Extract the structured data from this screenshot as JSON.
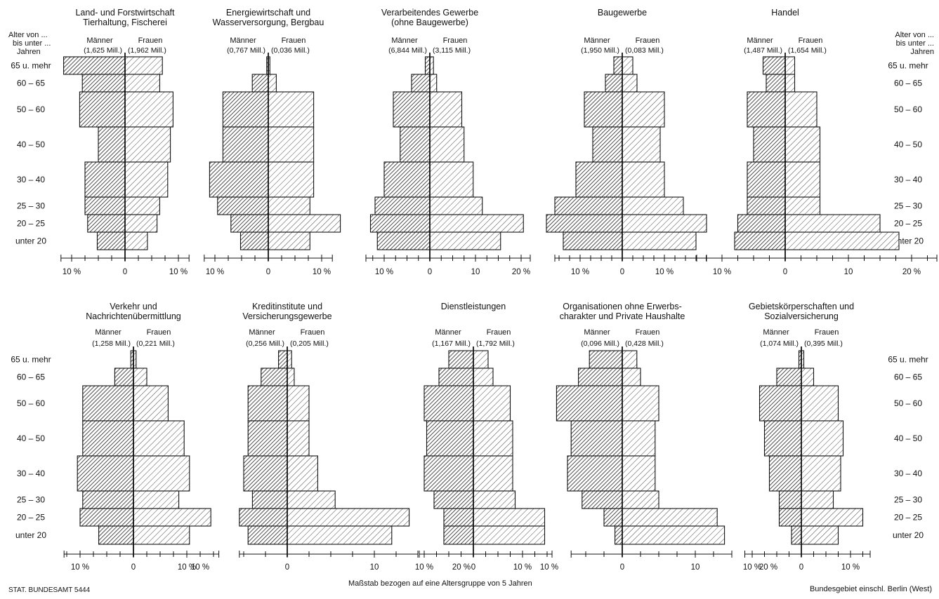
{
  "colors": {
    "ink": "#111111",
    "paper": "#ffffff",
    "male_hatch": "#222222",
    "female_hatch": "#333333"
  },
  "age_axis": {
    "title_lines": [
      "Alter von ...",
      "bis unter ...",
      "Jahren"
    ],
    "top_labels": [
      "65 u. mehr",
      "60 – 65",
      "50 – 60",
      "40 – 50",
      "30 – 40",
      "25 – 30",
      "20 – 25",
      "unter 20"
    ],
    "bottom_labels": [
      "65 u. mehr",
      "60 – 65",
      "50 – 60",
      "40 – 50",
      "30 – 40",
      "25 – 30",
      "20 – 25",
      "unter 20"
    ]
  },
  "footer": {
    "source": "STAT. BUNDESAMT 5444",
    "scale_note": "Maßstab bezogen auf eine Altersgruppe von 5 Jahren",
    "region": "Bundesgebiet einschl. Berlin (West)"
  },
  "chart_data": [
    {
      "type": "bar",
      "orientation": "pyramid",
      "title": [
        "Land- und Forstwirtschaft",
        "Tierhaltung, Fischerei"
      ],
      "male_label": "Männer",
      "female_label": "Frauen",
      "male_total": "(1,625 Mill.)",
      "female_total": "(1,962 Mill.)",
      "categories": [
        "65 u. mehr",
        "60–65",
        "50–60",
        "40–50",
        "30–40",
        "25–30",
        "20–25",
        "unter 20"
      ],
      "series": [
        {
          "name": "Männer",
          "values": [
            11.5,
            8,
            8.5,
            5,
            7.5,
            7.5,
            7,
            5.2
          ]
        },
        {
          "name": "Frauen",
          "values": [
            7,
            6.5,
            9,
            8.5,
            8,
            6.5,
            6,
            4.2
          ]
        }
      ],
      "xticks": [
        "10 %",
        "0",
        "10 %"
      ],
      "xlim": [
        -12,
        12
      ]
    },
    {
      "type": "bar",
      "orientation": "pyramid",
      "title": [
        "Energiewirtschaft und",
        "Wasserversorgung, Bergbau"
      ],
      "male_label": "Männer",
      "female_label": "Frauen",
      "male_total": "(0,767 Mill.)",
      "female_total": "(0,036 Mill.)",
      "categories": [
        "65 u. mehr",
        "60–65",
        "50–60",
        "40–50",
        "30–40",
        "25–30",
        "20–25",
        "unter 20"
      ],
      "series": [
        {
          "name": "Männer",
          "values": [
            0.3,
            3,
            8.5,
            8.5,
            11,
            9.5,
            7,
            5.2
          ]
        },
        {
          "name": "Frauen",
          "values": [
            0.3,
            1.5,
            8.5,
            8.5,
            8.5,
            7.8,
            13.5,
            7.8
          ]
        }
      ],
      "xticks": [
        "10 %",
        "0",
        "10 %"
      ],
      "xlim": [
        -12,
        12
      ]
    },
    {
      "type": "bar",
      "orientation": "pyramid",
      "title": [
        "Verarbeitendes Gewerbe",
        "(ohne Baugewerbe)"
      ],
      "male_label": "Männer",
      "female_label": "Frauen",
      "male_total": "(6,844 Mill.)",
      "female_total": "(3,115 Mill.)",
      "categories": [
        "65 u. mehr",
        "60–65",
        "50–60",
        "40–50",
        "30–40",
        "25–30",
        "20–25",
        "unter 20"
      ],
      "series": [
        {
          "name": "Männer",
          "values": [
            1,
            4,
            8,
            6.5,
            10,
            12,
            13,
            11.5
          ]
        },
        {
          "name": "Frauen",
          "values": [
            0.8,
            1.5,
            7,
            7.5,
            9.5,
            11.5,
            20.5,
            15.5
          ]
        }
      ],
      "xticks": [
        "10 %",
        "0",
        "10",
        "20 %"
      ],
      "xlim": [
        -14,
        22
      ]
    },
    {
      "type": "bar",
      "orientation": "pyramid",
      "title": [
        "Baugewerbe"
      ],
      "male_label": "Männer",
      "female_label": "Frauen",
      "male_total": "(1,950 Mill.)",
      "female_total": "(0,083 Mill.)",
      "categories": [
        "65 u. mehr",
        "60–65",
        "50–60",
        "40–50",
        "30–40",
        "25–30",
        "20–25",
        "unter 20"
      ],
      "series": [
        {
          "name": "Männer",
          "values": [
            2,
            4,
            9,
            7,
            11,
            16,
            18,
            14
          ]
        },
        {
          "name": "Frauen",
          "values": [
            2.5,
            3.5,
            10,
            9,
            10,
            14.5,
            20,
            17.5
          ]
        }
      ],
      "xticks": [
        "10 %",
        "0",
        "10 %"
      ],
      "xlim": [
        -16,
        20
      ]
    },
    {
      "type": "bar",
      "orientation": "pyramid",
      "title": [
        "Handel"
      ],
      "male_label": "Männer",
      "female_label": "Frauen",
      "male_total": "(1,487 Mill.)",
      "female_total": "(1,654 Mill.)",
      "categories": [
        "65 u. mehr",
        "60–65",
        "50–60",
        "40–50",
        "30–40",
        "25–30",
        "20–25",
        "unter 20"
      ],
      "series": [
        {
          "name": "Männer",
          "values": [
            3.5,
            3,
            6,
            5,
            6,
            6,
            7.5,
            8
          ]
        },
        {
          "name": "Frauen",
          "values": [
            1.5,
            1.5,
            5,
            5.5,
            5.5,
            5.5,
            15,
            18
          ]
        }
      ],
      "xticks": [
        "10 %",
        "0",
        "10",
        "20 %"
      ],
      "xlim": [
        -14,
        24
      ]
    },
    {
      "type": "bar",
      "orientation": "pyramid",
      "title": [
        "Verkehr und",
        "Nachrichtenübermittlung"
      ],
      "male_label": "Männer",
      "female_label": "Frauen",
      "male_total": "(1,258 Mill.)",
      "female_total": "(0,221 Mill.)",
      "categories": [
        "65 u. mehr",
        "60–65",
        "50–60",
        "40–50",
        "30–40",
        "25–30",
        "20–25",
        "unter 20"
      ],
      "series": [
        {
          "name": "Männer",
          "values": [
            0.5,
            3.5,
            9.5,
            9.5,
            10.5,
            9.5,
            10,
            6.5
          ]
        },
        {
          "name": "Frauen",
          "values": [
            0.5,
            2.5,
            6.5,
            9.5,
            10.5,
            8.5,
            14.5,
            10.5
          ]
        }
      ],
      "xticks": [
        "10 %",
        "0",
        "10 %"
      ],
      "xlim": [
        -13,
        16
      ]
    },
    {
      "type": "bar",
      "orientation": "pyramid",
      "title": [
        "Kreditinstitute und",
        "Versicherungsgewerbe"
      ],
      "male_label": "Männer",
      "female_label": "Frauen",
      "male_total": "(0,256 Mill.)",
      "female_total": "(0,205 Mill.)",
      "categories": [
        "65 u. mehr",
        "60–65",
        "50–60",
        "40–50",
        "30–40",
        "25–30",
        "20–25",
        "unter 20"
      ],
      "series": [
        {
          "name": "Männer",
          "values": [
            1,
            3,
            4.5,
            4.5,
            5,
            4,
            5.5,
            4.5
          ]
        },
        {
          "name": "Frauen",
          "values": [
            0.5,
            0.8,
            2.5,
            2.5,
            3.5,
            5.5,
            14,
            12
          ]
        }
      ],
      "xticks": [
        "10 %",
        "0",
        "10",
        "20 %"
      ],
      "xlim": [
        -5.5,
        15
      ]
    },
    {
      "type": "bar",
      "orientation": "pyramid",
      "title": [
        "Dienstleistungen"
      ],
      "male_label": "Männer",
      "female_label": "Frauen",
      "male_total": "(1,167 Mill.)",
      "female_total": "(1,792 Mill.)",
      "categories": [
        "65 u. mehr",
        "60–65",
        "50–60",
        "40–50",
        "30–40",
        "25–30",
        "20–25",
        "unter 20"
      ],
      "series": [
        {
          "name": "Männer",
          "values": [
            5,
            7,
            10,
            9.5,
            10,
            8,
            6,
            6
          ]
        },
        {
          "name": "Frauen",
          "values": [
            3,
            4,
            7.5,
            8,
            8,
            8.5,
            14.5,
            14.5
          ]
        }
      ],
      "xticks": [
        "10 %",
        "0",
        "10 %"
      ],
      "xlim": [
        -11,
        16
      ]
    },
    {
      "type": "bar",
      "orientation": "pyramid",
      "title": [
        "Organisationen ohne Erwerbs-",
        "charakter und Private Haushalte"
      ],
      "male_label": "Männer",
      "female_label": "Frauen",
      "male_total": "(0,096 Mill.)",
      "female_total": "(0,428 Mill.)",
      "categories": [
        "65 u. mehr",
        "60–65",
        "50–60",
        "40–50",
        "30–40",
        "25–30",
        "20–25",
        "unter 20"
      ],
      "series": [
        {
          "name": "Männer",
          "values": [
            4.5,
            6,
            9,
            7,
            7.5,
            5.5,
            2.5,
            1
          ]
        },
        {
          "name": "Frauen",
          "values": [
            2,
            2.5,
            5,
            4.5,
            4.5,
            5,
            13,
            14
          ]
        }
      ],
      "xticks": [
        "10 %",
        "0",
        "10",
        "20 %"
      ],
      "xlim": [
        -7,
        15
      ]
    },
    {
      "type": "bar",
      "orientation": "pyramid",
      "title": [
        "Gebietskörperschaften und",
        "Sozialversicherung"
      ],
      "male_label": "Männer",
      "female_label": "Frauen",
      "male_total": "(1,074 Mill.)",
      "female_total": "(0,395 Mill.)",
      "categories": [
        "65 u. mehr",
        "60–65",
        "50–60",
        "40–50",
        "30–40",
        "25–30",
        "20–25",
        "unter 20"
      ],
      "series": [
        {
          "name": "Männer",
          "values": [
            0.5,
            5,
            8.5,
            7.5,
            6.5,
            4.5,
            4.5,
            2
          ]
        },
        {
          "name": "Frauen",
          "values": [
            0.5,
            2.5,
            7.5,
            8.5,
            8,
            6.5,
            12.5,
            7.5
          ]
        }
      ],
      "xticks": [
        "10 %",
        "0",
        "10 %"
      ],
      "xlim": [
        -11.5,
        14
      ]
    }
  ]
}
